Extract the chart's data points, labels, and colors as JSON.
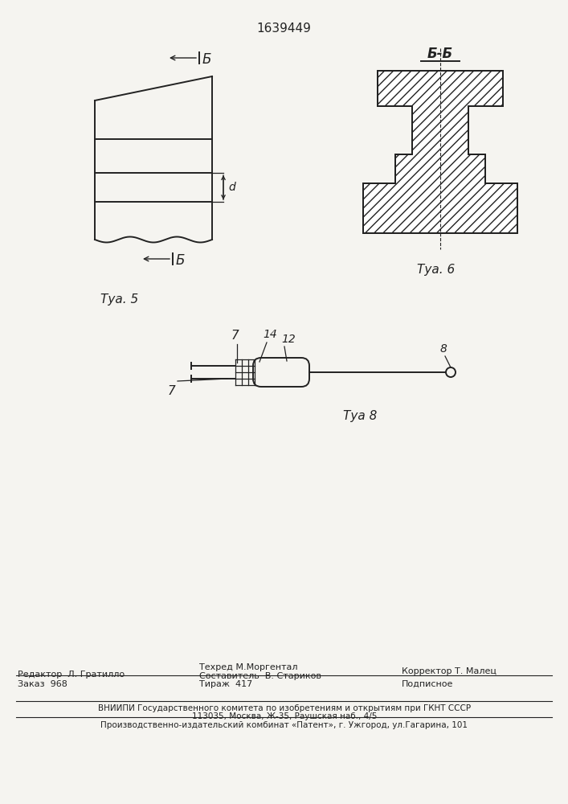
{
  "title": "1639449",
  "bg_color": "#f5f4f0",
  "fig5_label": "Τуа. 5",
  "fig6_label": "Τуа. 6",
  "fig8_label": "Τуа 8",
  "dim_label_d": "d",
  "footer_line1": "Редактор  Л. Гратилло",
  "footer_col2_line1": "Составитель  В. Стариков",
  "footer_col2_line2": "Техред М.Моргентал",
  "footer_col3": "Корректор Т. Малец",
  "footer_order": "Заказ  968",
  "footer_print": "Тираж  417",
  "footer_sub": "Подписное",
  "footer_vniip1": "ВНИИПИ Государственного комитета по изобретениям и открытиям при ГКНТ СССР",
  "footer_vniip2": "113035, Москва, Ж-35, Раушская наб., 4/5",
  "footer_patent": "Производственно-издательский комбинат «Патент», г. Ужгород, ул.Гагарина, 101"
}
